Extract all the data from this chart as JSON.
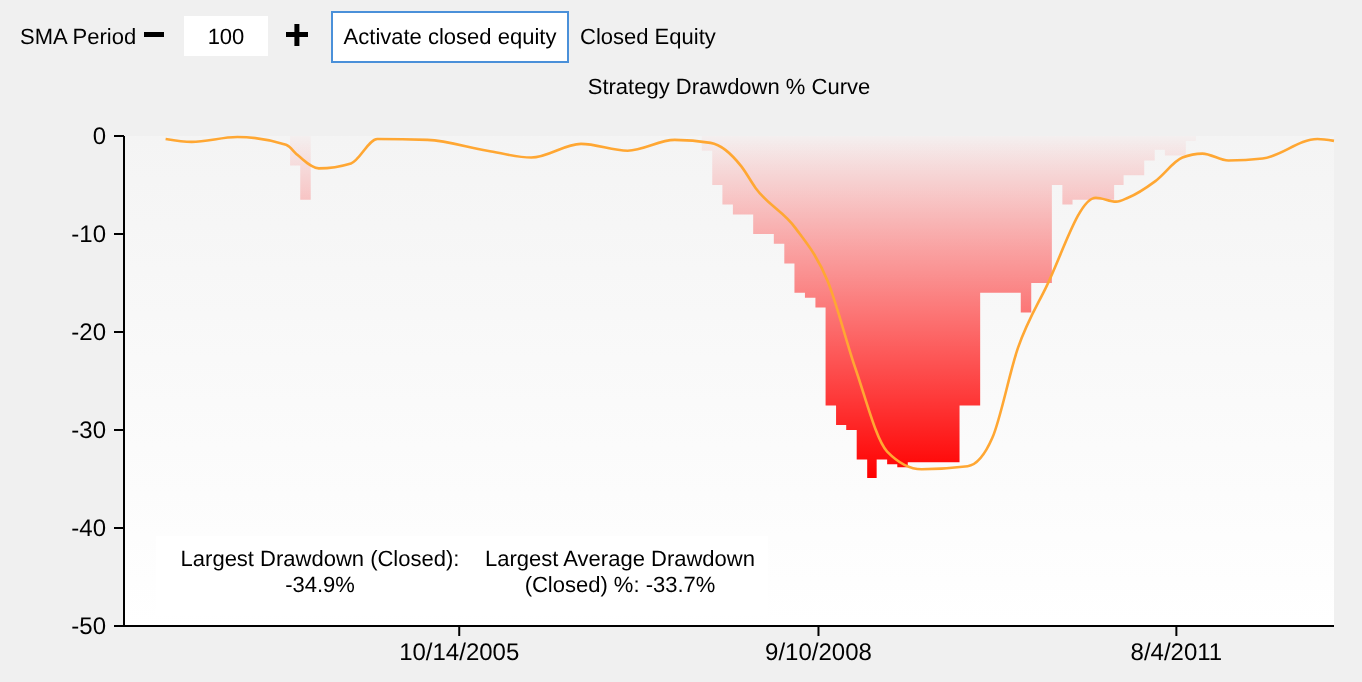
{
  "chart_data": {
    "type": "area",
    "title": "Strategy Drawdown % Curve",
    "xlim": [
      "2003-01-27",
      "2012-11-12"
    ],
    "xticks": [
      {
        "value": "2005-10-14",
        "label": "10/14/2005"
      },
      {
        "value": "2008-09-10",
        "label": "9/10/2008"
      },
      {
        "value": "2011-08-04",
        "label": "8/4/2011"
      }
    ],
    "ylim": [
      -50,
      0
    ],
    "yticks": [
      0,
      -10,
      -20,
      -30,
      -40,
      -50
    ],
    "grid": false,
    "series": [
      {
        "type": "area",
        "color": "#ff0000",
        "x": [
          "2003-02",
          "2004-06",
          "2004-07",
          "2004-08",
          "2007-10",
          "2007-11",
          "2007-12",
          "2008-01",
          "2008-02",
          "2008-03",
          "2008-04",
          "2008-05",
          "2008-06",
          "2008-07",
          "2008-08",
          "2008-09",
          "2008-10",
          "2008-11",
          "2008-12",
          "2009-01",
          "2009-02",
          "2009-03",
          "2009-04",
          "2009-05",
          "2009-06",
          "2009-07",
          "2009-08",
          "2009-09",
          "2009-10",
          "2009-11",
          "2009-12",
          "2010-01",
          "2010-02",
          "2010-03",
          "2010-04",
          "2010-05",
          "2010-06",
          "2010-07",
          "2010-08",
          "2010-09",
          "2010-10",
          "2010-11",
          "2010-12",
          "2011-01",
          "2011-02",
          "2011-03",
          "2011-04",
          "2011-05",
          "2011-06",
          "2011-07",
          "2011-08",
          "2011-09",
          "2011-10",
          "2012-11-12"
        ],
        "values": [
          0,
          -3,
          -6.5,
          0,
          -1.5,
          -5,
          -7,
          -8,
          -8,
          -10,
          -10,
          -11,
          -13,
          -16,
          -16.5,
          -17.5,
          -27.5,
          -29.5,
          -30,
          -33,
          -34.9,
          -33,
          -33.5,
          -33.8,
          -33.3,
          -33.3,
          -33.3,
          -33.3,
          -33.3,
          -27.5,
          -27.5,
          -16,
          -16,
          -16,
          -16,
          -18,
          -15,
          -15,
          -5,
          -7,
          -6.5,
          -6.5,
          -6.5,
          -6.5,
          -5,
          -4,
          -4,
          -2.5,
          -1.4,
          -2,
          -2,
          -0.5,
          0,
          0
        ]
      },
      {
        "type": "line",
        "color": "#ffa733",
        "x": [
          "2003-05-30",
          "2003-08-15",
          "2003-12-28",
          "2004-05-20",
          "2004-06-25",
          "2004-08-25",
          "2004-11-28",
          "2005-02-14",
          "2005-07-12",
          "2006-01-05",
          "2006-05-15",
          "2006-10-09",
          "2007-02-24",
          "2007-07-13",
          "2007-10-27",
          "2008-01-26",
          "2008-03-08",
          "2008-07-04",
          "2008-10-07",
          "2008-12-28",
          "2009-04-01",
          "2009-07-12",
          "2009-11-25",
          "2010-02-06",
          "2010-04-23",
          "2010-07-14",
          "2010-12-09",
          "2011-02-07",
          "2011-03-14",
          "2011-06-03",
          "2011-08-22",
          "2011-10-20",
          "2012-01-05",
          "2012-04-15",
          "2012-09-24",
          "2012-11-12"
        ],
        "values": [
          -0.3,
          -0.6,
          -0.1,
          -0.9,
          -2,
          -3.3,
          -2.8,
          -0.3,
          -0.4,
          -1.5,
          -2.2,
          -0.8,
          -1.5,
          -0.4,
          -0.7,
          -3.1,
          -5.3,
          -9.4,
          -14.8,
          -23.7,
          -32.2,
          -34,
          -33.7,
          -30.8,
          -21.6,
          -15.5,
          -6.3,
          -6.7,
          -6.3,
          -4.6,
          -2.2,
          -1.8,
          -2.5,
          -2.3,
          -0.3,
          -0.5
        ]
      }
    ],
    "annotations": [
      "SMA Period",
      "100",
      "Activate closed equity",
      "Closed Equity",
      "Largest Drawdown (Closed):\n-34.9%",
      "Largest Average Drawdown\n(Closed) %: -33.7%"
    ]
  }
}
